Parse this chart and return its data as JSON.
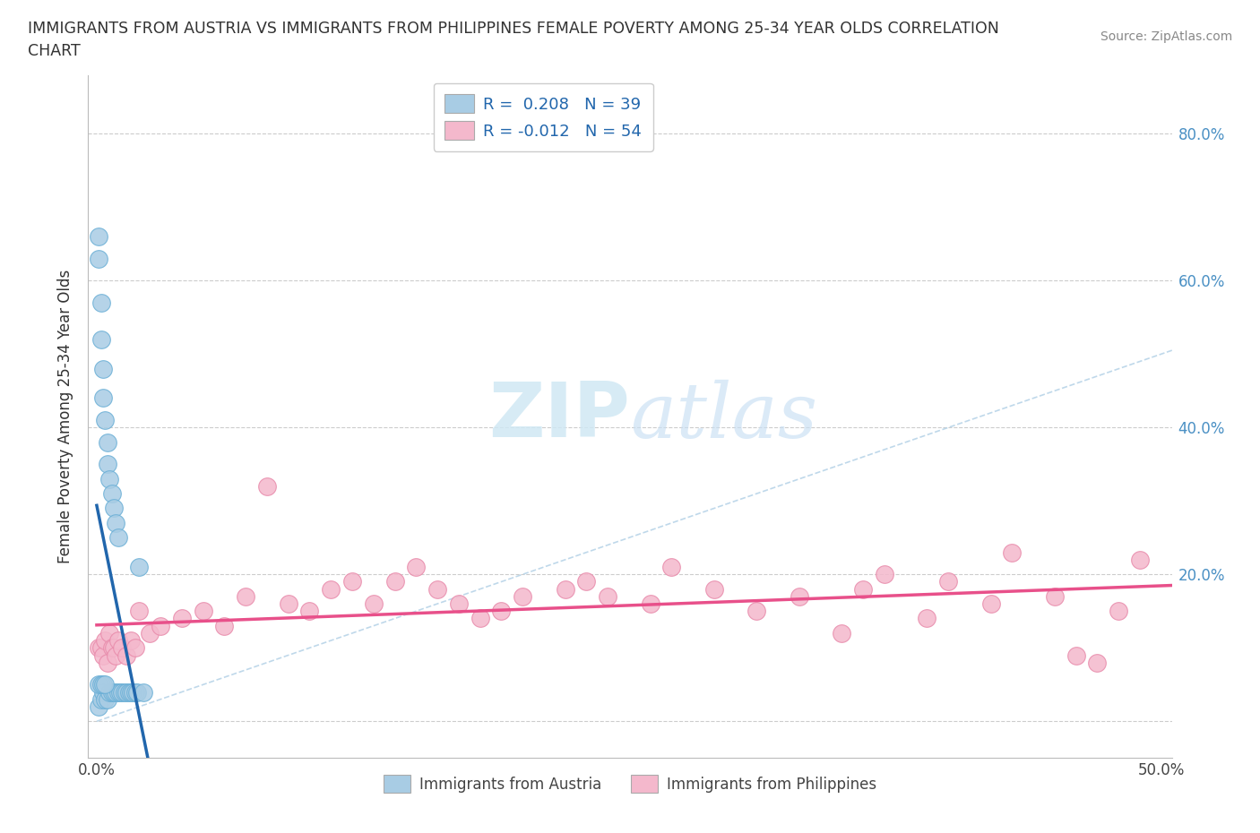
{
  "title_line1": "IMMIGRANTS FROM AUSTRIA VS IMMIGRANTS FROM PHILIPPINES FEMALE POVERTY AMONG 25-34 YEAR OLDS CORRELATION",
  "title_line2": "CHART",
  "source": "Source: ZipAtlas.com",
  "ylabel": "Female Poverty Among 25-34 Year Olds",
  "R_austria": 0.208,
  "N_austria": 39,
  "R_philippines": -0.012,
  "N_philippines": 54,
  "xlim": [
    -0.004,
    0.505
  ],
  "ylim": [
    -0.05,
    0.88
  ],
  "austria_color": "#a8cce4",
  "austria_edge_color": "#6aafd6",
  "philippines_color": "#f4b8cc",
  "philippines_edge_color": "#e88aaa",
  "austria_line_color": "#2166ac",
  "philippines_line_color": "#e8508a",
  "diagonal_color": "#b8d4e8",
  "watermark_color": "#d0e8f4",
  "ytick_positions": [
    0.0,
    0.2,
    0.4,
    0.6,
    0.8
  ],
  "ytick_labels_right": [
    "",
    "20.0%",
    "40.0%",
    "60.0%",
    "80.0%"
  ],
  "xtick_positions": [
    0.0,
    0.1,
    0.2,
    0.3,
    0.4,
    0.5
  ],
  "xtick_labels": [
    "0.0%",
    "",
    "",
    "",
    "",
    "50.0%"
  ],
  "austria_x": [
    0.001,
    0.001,
    0.001,
    0.002,
    0.002,
    0.002,
    0.003,
    0.003,
    0.003,
    0.004,
    0.004,
    0.005,
    0.005,
    0.005,
    0.006,
    0.006,
    0.007,
    0.007,
    0.008,
    0.008,
    0.009,
    0.009,
    0.01,
    0.01,
    0.011,
    0.012,
    0.013,
    0.014,
    0.015,
    0.016,
    0.017,
    0.018,
    0.019,
    0.02,
    0.022,
    0.001,
    0.002,
    0.003,
    0.004
  ],
  "austria_y": [
    0.66,
    0.63,
    0.02,
    0.57,
    0.52,
    0.03,
    0.48,
    0.44,
    0.04,
    0.41,
    0.03,
    0.38,
    0.35,
    0.03,
    0.33,
    0.04,
    0.31,
    0.04,
    0.29,
    0.04,
    0.27,
    0.04,
    0.25,
    0.04,
    0.04,
    0.04,
    0.04,
    0.04,
    0.04,
    0.04,
    0.04,
    0.04,
    0.04,
    0.21,
    0.04,
    0.05,
    0.05,
    0.05,
    0.05
  ],
  "philippines_x": [
    0.001,
    0.002,
    0.003,
    0.004,
    0.005,
    0.006,
    0.007,
    0.008,
    0.009,
    0.01,
    0.012,
    0.014,
    0.016,
    0.018,
    0.02,
    0.025,
    0.03,
    0.04,
    0.05,
    0.06,
    0.07,
    0.09,
    0.1,
    0.11,
    0.13,
    0.14,
    0.16,
    0.17,
    0.19,
    0.2,
    0.22,
    0.23,
    0.24,
    0.26,
    0.27,
    0.29,
    0.31,
    0.33,
    0.36,
    0.37,
    0.39,
    0.4,
    0.42,
    0.43,
    0.45,
    0.46,
    0.48,
    0.49,
    0.15,
    0.18,
    0.08,
    0.12,
    0.35,
    0.47
  ],
  "philippines_y": [
    0.1,
    0.1,
    0.09,
    0.11,
    0.08,
    0.12,
    0.1,
    0.1,
    0.09,
    0.11,
    0.1,
    0.09,
    0.11,
    0.1,
    0.15,
    0.12,
    0.13,
    0.14,
    0.15,
    0.13,
    0.17,
    0.16,
    0.15,
    0.18,
    0.16,
    0.19,
    0.18,
    0.16,
    0.15,
    0.17,
    0.18,
    0.19,
    0.17,
    0.16,
    0.21,
    0.18,
    0.15,
    0.17,
    0.18,
    0.2,
    0.14,
    0.19,
    0.16,
    0.23,
    0.17,
    0.09,
    0.15,
    0.22,
    0.21,
    0.14,
    0.32,
    0.19,
    0.12,
    0.08
  ]
}
